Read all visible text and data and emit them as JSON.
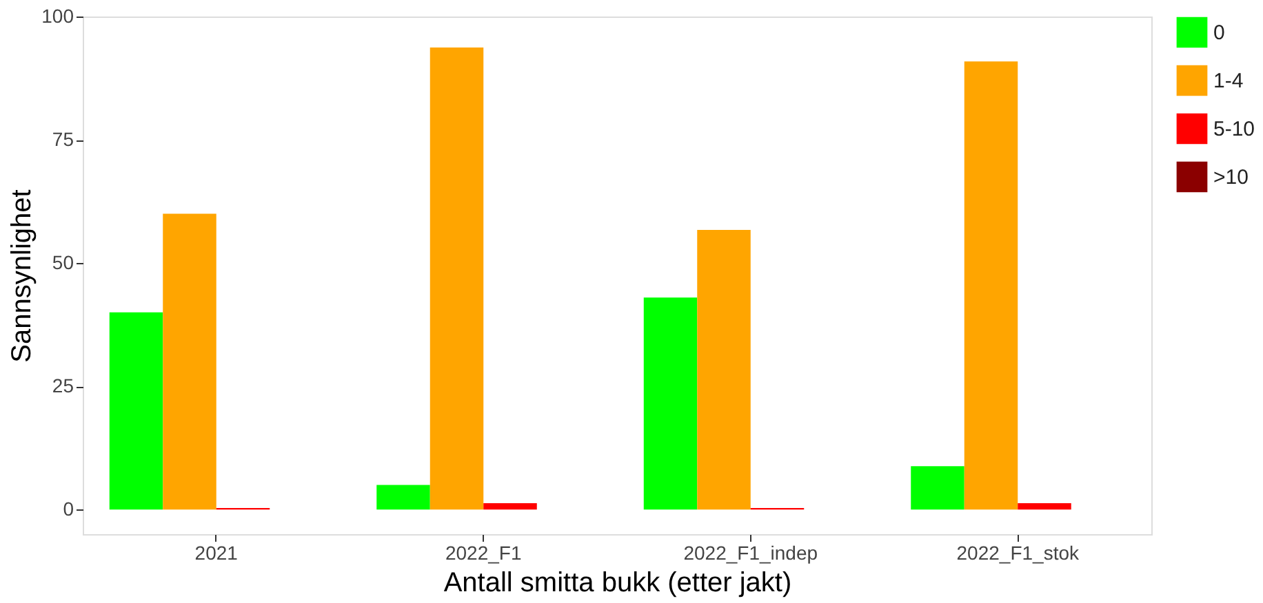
{
  "chart_data": {
    "type": "bar",
    "xlabel": "Antall smitta bukk (etter jakt)",
    "ylabel": "Sannsynlighet",
    "categories": [
      "2021",
      "2022_F1",
      "2022_F1_indep",
      "2022_F1_stok"
    ],
    "series": [
      {
        "name": "0",
        "color": "#00ff00",
        "values": [
          40,
          5,
          43,
          8.8
        ]
      },
      {
        "name": "1-4",
        "color": "#ffa500",
        "values": [
          60,
          93.7,
          56.7,
          90.9
        ]
      },
      {
        "name": "5-10",
        "color": "#ff0000",
        "values": [
          0.3,
          1.3,
          0.3,
          1.3
        ]
      },
      {
        "name": ">10",
        "color": "#8b0000",
        "values": [
          0,
          0,
          0,
          0
        ]
      }
    ],
    "ylim": [
      -5,
      100
    ],
    "yticks": [
      0,
      25,
      50,
      75,
      100
    ],
    "grid": false,
    "legend": "right"
  }
}
